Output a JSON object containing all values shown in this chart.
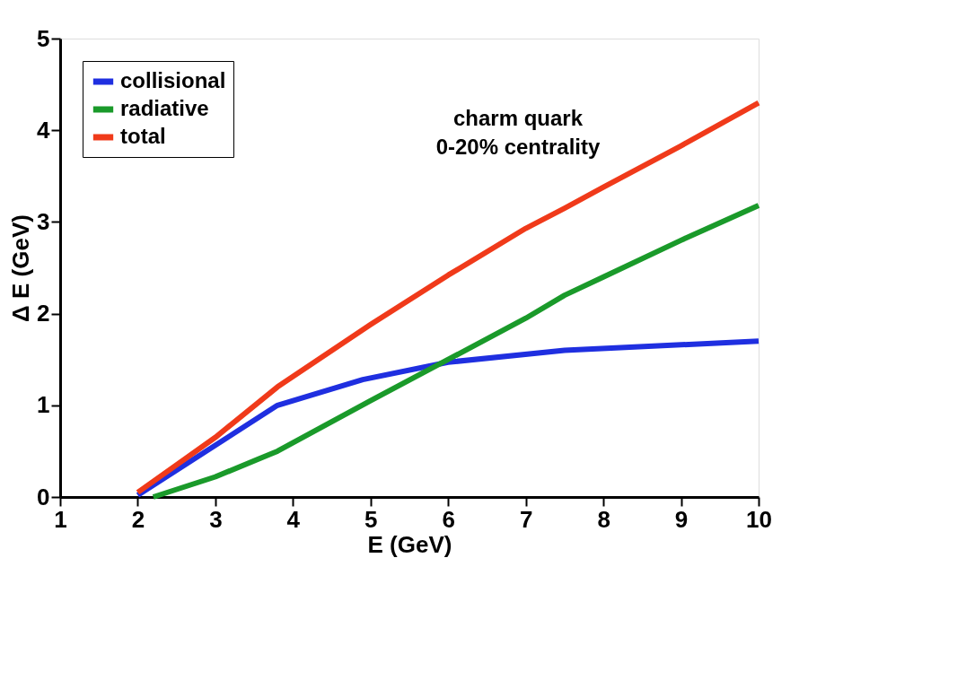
{
  "chart_data": {
    "type": "line",
    "xlabel": "E (GeV)",
    "ylabel": "Δ E (GeV)",
    "xlim": [
      1,
      10
    ],
    "ylim": [
      0,
      5
    ],
    "xticks": [
      1,
      2,
      3,
      4,
      5,
      6,
      7,
      8,
      9,
      10
    ],
    "yticks": [
      0,
      1,
      2,
      3,
      4,
      5
    ],
    "grid": false,
    "legend": "top left",
    "marker": "none",
    "line_style": "solid",
    "annotations": [
      "charm quark",
      "0-20% centrality"
    ],
    "series": [
      {
        "name": "collisional",
        "color": "#1f2fe0",
        "x": [
          2,
          3.8,
          4.9,
          6,
          7.5,
          10
        ],
        "values": [
          0.02,
          1.0,
          1.28,
          1.47,
          1.6,
          1.7
        ]
      },
      {
        "name": "radiative",
        "color": "#1a9a2a",
        "x": [
          2.2,
          3,
          3.8,
          5,
          6,
          7,
          7.5,
          8,
          9,
          10
        ],
        "values": [
          0,
          0.22,
          0.5,
          1.05,
          1.5,
          1.95,
          2.2,
          2.4,
          2.8,
          3.18
        ]
      },
      {
        "name": "total",
        "color": "#f03a1a",
        "x": [
          2,
          3,
          3.8,
          5,
          6,
          7,
          7.5,
          8,
          9,
          10
        ],
        "values": [
          0.05,
          0.65,
          1.2,
          1.88,
          2.42,
          2.93,
          3.15,
          3.38,
          3.83,
          4.3
        ]
      }
    ]
  }
}
